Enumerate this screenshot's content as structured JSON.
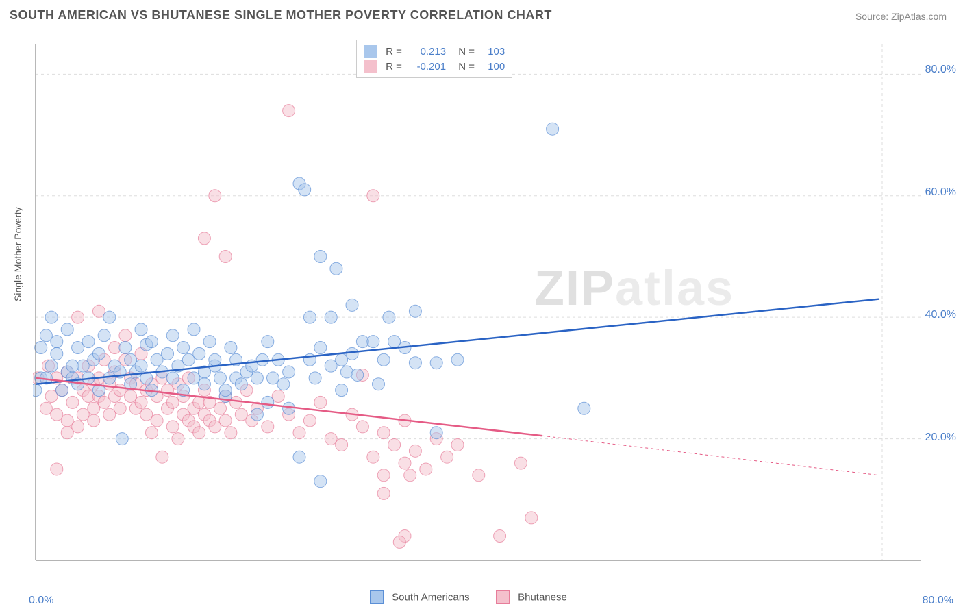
{
  "title": "SOUTH AMERICAN VS BHUTANESE SINGLE MOTHER POVERTY CORRELATION CHART",
  "source_label": "Source: ZipAtlas.com",
  "y_axis_label": "Single Mother Poverty",
  "watermark_zip": "ZIP",
  "watermark_atlas": "atlas",
  "chart": {
    "type": "scatter",
    "xlim": [
      0,
      80
    ],
    "ylim": [
      0,
      85
    ],
    "x_tick_labels": [
      "0.0%",
      "80.0%"
    ],
    "y_tick_labels": [
      "20.0%",
      "40.0%",
      "60.0%",
      "80.0%"
    ],
    "y_tick_values": [
      20,
      40,
      60,
      80
    ],
    "grid_color": "#dddddd",
    "axis_color": "#888888",
    "background_color": "#ffffff",
    "axis_label_color": "#4a7ec9",
    "axis_label_fontsize": 16,
    "title_fontsize": 18,
    "marker_radius": 9,
    "marker_opacity": 0.5,
    "series": [
      {
        "name": "South Americans",
        "label": "South Americans",
        "color_fill": "#a9c7ec",
        "color_stroke": "#5b8fd6",
        "swatch_fill": "#a9c7ec",
        "swatch_stroke": "#5b8fd6",
        "R": "0.213",
        "N": "103",
        "trend": {
          "x1": 0,
          "y1": 29,
          "x2": 80,
          "y2": 43,
          "color": "#2a63c4",
          "width": 2.5,
          "dash": "none"
        },
        "extrap": null,
        "points": [
          [
            0,
            28
          ],
          [
            0.5,
            30
          ],
          [
            0.5,
            35
          ],
          [
            1,
            37
          ],
          [
            1,
            30
          ],
          [
            1.5,
            32
          ],
          [
            1.5,
            40
          ],
          [
            2,
            36
          ],
          [
            2,
            34
          ],
          [
            2.5,
            28
          ],
          [
            3,
            31
          ],
          [
            3,
            38
          ],
          [
            3.5,
            30
          ],
          [
            3.5,
            32
          ],
          [
            4,
            29
          ],
          [
            4,
            35
          ],
          [
            4.5,
            32
          ],
          [
            5,
            36
          ],
          [
            5,
            30
          ],
          [
            5.5,
            33
          ],
          [
            6,
            28
          ],
          [
            6,
            34
          ],
          [
            6.5,
            37
          ],
          [
            7,
            30
          ],
          [
            7,
            40
          ],
          [
            7.5,
            32
          ],
          [
            8,
            31
          ],
          [
            8.2,
            20
          ],
          [
            8.5,
            35
          ],
          [
            9,
            33
          ],
          [
            9,
            29
          ],
          [
            9.5,
            31
          ],
          [
            10,
            38
          ],
          [
            10,
            32
          ],
          [
            10.5,
            30
          ],
          [
            10.5,
            35.5
          ],
          [
            11,
            36
          ],
          [
            11,
            28
          ],
          [
            11.5,
            33
          ],
          [
            12,
            31
          ],
          [
            12.5,
            34
          ],
          [
            13,
            30
          ],
          [
            13,
            37
          ],
          [
            13.5,
            32
          ],
          [
            14,
            35
          ],
          [
            14,
            28
          ],
          [
            14.5,
            33
          ],
          [
            15,
            30
          ],
          [
            15,
            38
          ],
          [
            15.5,
            34
          ],
          [
            16,
            31
          ],
          [
            16,
            29
          ],
          [
            16.5,
            36
          ],
          [
            17,
            32
          ],
          [
            17,
            33
          ],
          [
            17.5,
            30
          ],
          [
            18,
            27
          ],
          [
            18,
            28
          ],
          [
            18.5,
            35
          ],
          [
            19,
            33
          ],
          [
            19,
            30
          ],
          [
            19.5,
            29
          ],
          [
            20,
            31
          ],
          [
            20.5,
            32
          ],
          [
            21,
            30
          ],
          [
            21,
            24
          ],
          [
            21.5,
            33
          ],
          [
            22,
            26
          ],
          [
            22,
            36
          ],
          [
            22.5,
            30
          ],
          [
            23,
            33
          ],
          [
            23.5,
            29
          ],
          [
            24,
            25
          ],
          [
            24,
            31
          ],
          [
            25,
            62
          ],
          [
            25.5,
            61
          ],
          [
            26,
            33
          ],
          [
            26,
            40
          ],
          [
            25,
            17
          ],
          [
            26.5,
            30
          ],
          [
            27,
            50
          ],
          [
            27,
            35
          ],
          [
            28,
            32
          ],
          [
            28,
            40
          ],
          [
            27,
            13
          ],
          [
            28.5,
            48
          ],
          [
            29,
            33
          ],
          [
            29,
            28
          ],
          [
            29.5,
            31
          ],
          [
            30,
            42
          ],
          [
            30,
            34
          ],
          [
            30.5,
            30.5
          ],
          [
            31,
            36
          ],
          [
            32,
            36
          ],
          [
            32.5,
            29
          ],
          [
            33,
            33
          ],
          [
            33.5,
            40
          ],
          [
            34,
            36
          ],
          [
            35,
            35
          ],
          [
            36,
            41
          ],
          [
            36,
            32.5
          ],
          [
            38,
            21
          ],
          [
            38,
            32.5
          ],
          [
            40,
            33
          ],
          [
            49,
            71
          ],
          [
            52,
            25
          ]
        ]
      },
      {
        "name": "Bhutanese",
        "label": "Bhutanese",
        "color_fill": "#f4c0cc",
        "color_stroke": "#e77d9a",
        "swatch_fill": "#f4c0cc",
        "swatch_stroke": "#e77d9a",
        "R": "-0.201",
        "N": "100",
        "trend": {
          "x1": 0,
          "y1": 30,
          "x2": 48,
          "y2": 20.5,
          "color": "#e55b85",
          "width": 2.5,
          "dash": "none"
        },
        "extrap": {
          "x1": 48,
          "y1": 20.5,
          "x2": 80,
          "y2": 14,
          "color": "#e55b85",
          "width": 1,
          "dash": "4,4"
        },
        "points": [
          [
            0.2,
            30
          ],
          [
            1,
            25
          ],
          [
            1.2,
            32
          ],
          [
            1.5,
            27
          ],
          [
            2,
            30
          ],
          [
            2,
            24
          ],
          [
            2,
            15
          ],
          [
            2.5,
            28
          ],
          [
            3,
            23
          ],
          [
            3,
            21
          ],
          [
            3,
            31
          ],
          [
            3.5,
            26
          ],
          [
            4,
            22
          ],
          [
            4,
            30
          ],
          [
            4,
            40
          ],
          [
            4.5,
            28
          ],
          [
            4.5,
            24
          ],
          [
            5,
            27
          ],
          [
            5,
            32
          ],
          [
            5.5,
            29
          ],
          [
            5.5,
            25
          ],
          [
            5.5,
            23
          ],
          [
            6,
            30
          ],
          [
            6,
            27
          ],
          [
            6,
            41
          ],
          [
            6.5,
            26
          ],
          [
            6.5,
            33
          ],
          [
            7,
            29
          ],
          [
            7,
            24
          ],
          [
            7.5,
            27
          ],
          [
            7.5,
            31
          ],
          [
            7.5,
            35
          ],
          [
            8,
            28
          ],
          [
            8,
            25
          ],
          [
            8.5,
            33
          ],
          [
            8.5,
            37
          ],
          [
            9,
            27
          ],
          [
            9,
            30
          ],
          [
            9.5,
            25
          ],
          [
            9.5,
            29
          ],
          [
            10,
            26
          ],
          [
            10,
            34
          ],
          [
            10.5,
            28
          ],
          [
            10.5,
            24
          ],
          [
            11,
            29
          ],
          [
            11,
            21
          ],
          [
            11.5,
            27
          ],
          [
            11.5,
            23
          ],
          [
            12,
            30
          ],
          [
            12,
            17
          ],
          [
            12.5,
            28
          ],
          [
            12.5,
            25
          ],
          [
            13,
            26
          ],
          [
            13,
            22
          ],
          [
            13.5,
            29
          ],
          [
            13.5,
            20
          ],
          [
            14,
            24
          ],
          [
            14,
            27
          ],
          [
            14.5,
            23
          ],
          [
            14.5,
            30
          ],
          [
            15,
            25
          ],
          [
            15,
            22
          ],
          [
            15.5,
            26
          ],
          [
            15.5,
            21
          ],
          [
            16,
            24
          ],
          [
            16,
            28
          ],
          [
            16,
            53
          ],
          [
            16.5,
            23
          ],
          [
            16.5,
            26
          ],
          [
            17,
            22
          ],
          [
            17,
            60
          ],
          [
            17.5,
            25
          ],
          [
            18,
            27
          ],
          [
            18,
            23
          ],
          [
            18,
            50
          ],
          [
            18.5,
            21
          ],
          [
            19,
            26
          ],
          [
            19.5,
            24
          ],
          [
            20,
            28
          ],
          [
            20.5,
            23
          ],
          [
            21,
            25
          ],
          [
            22,
            22
          ],
          [
            23,
            27
          ],
          [
            24,
            24
          ],
          [
            24,
            74
          ],
          [
            25,
            21
          ],
          [
            26,
            23
          ],
          [
            27,
            26
          ],
          [
            28,
            20
          ],
          [
            29,
            19
          ],
          [
            30,
            24
          ],
          [
            31,
            22
          ],
          [
            31,
            30.5
          ],
          [
            32,
            17
          ],
          [
            33,
            21
          ],
          [
            32,
            60
          ],
          [
            33,
            14
          ],
          [
            34,
            19
          ],
          [
            35,
            16
          ],
          [
            35,
            23
          ],
          [
            35.5,
            14
          ],
          [
            36,
            18
          ],
          [
            37,
            15
          ],
          [
            38,
            20
          ],
          [
            39,
            17
          ],
          [
            40,
            19
          ],
          [
            42,
            14
          ],
          [
            44,
            4
          ],
          [
            46,
            16
          ],
          [
            47,
            7
          ],
          [
            35,
            4
          ],
          [
            34.5,
            3
          ],
          [
            33,
            11
          ]
        ]
      }
    ]
  },
  "legend_top": {
    "rows": [
      {
        "R_label": "R =",
        "N_label": "N ="
      },
      {
        "R_label": "R =",
        "N_label": "N ="
      }
    ]
  }
}
